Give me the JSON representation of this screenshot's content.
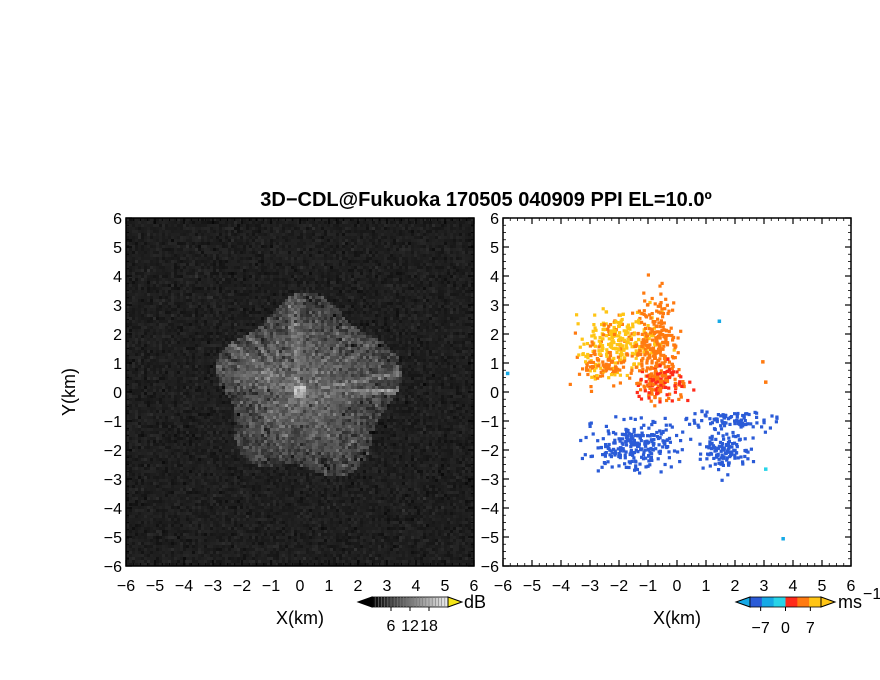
{
  "figure": {
    "title": "3D−CDL@Fukuoka 170505 040909 PPI EL=10.0º"
  },
  "chart_data": [
    {
      "type": "heatmap",
      "panel": "left",
      "description": "Doppler lidar SNR / reflectivity PPI (grayscale)",
      "xlabel": "X(km)",
      "ylabel": "Y(km)",
      "xlim": [
        -6,
        6
      ],
      "ylim": [
        -6,
        6
      ],
      "x_ticks": [
        "−6",
        "−5",
        "−4",
        "−3",
        "−2",
        "−1",
        "0",
        "1",
        "2",
        "3",
        "4",
        "5",
        "6"
      ],
      "y_ticks": [
        "6",
        "5",
        "4",
        "3",
        "2",
        "1",
        "0",
        "−1",
        "−2",
        "−3",
        "−4",
        "−5",
        "−6"
      ],
      "colorbar": {
        "unit": "dB",
        "ticks": [
          "6",
          "12",
          "18"
        ],
        "range": [
          0,
          24
        ],
        "colormap": "gray",
        "overflow_color": "#f5e61a"
      },
      "echo_region": {
        "center": [
          0,
          0
        ],
        "radius_km": [
          2.2,
          3.6
        ]
      },
      "background_color": "#1e1e1e"
    },
    {
      "type": "heatmap",
      "panel": "right",
      "description": "Doppler radial velocity PPI",
      "xlabel": "X(km)",
      "ylabel": "",
      "xlim": [
        -6,
        6
      ],
      "ylim": [
        -6,
        6
      ],
      "x_ticks": [
        "−6",
        "−5",
        "−4",
        "−3",
        "−2",
        "−1",
        "0",
        "1",
        "2",
        "3",
        "4",
        "5",
        "6"
      ],
      "y_ticks": [
        "6",
        "5",
        "4",
        "3",
        "2",
        "1",
        "0",
        "−1",
        "−2",
        "−3",
        "−4",
        "−5",
        "−6"
      ],
      "colorbar": {
        "unit": "ms",
        "unit_sup": "−1",
        "ticks": [
          "−7",
          "0",
          "7"
        ],
        "range": [
          -10,
          10
        ],
        "colors": [
          "#2a5bd7",
          "#16a9e6",
          "#27d4e8",
          "#ff2a1a",
          "#ff7a10",
          "#ffc515"
        ]
      },
      "clusters": [
        {
          "name": "receding-core",
          "center": [
            -2.0,
            1.9
          ],
          "size": [
            1.3,
            0.9
          ],
          "value_range": [
            5,
            8
          ]
        },
        {
          "name": "receding-west",
          "center": [
            -2.6,
            0.9
          ],
          "size": [
            0.8,
            0.6
          ],
          "value_range": [
            4,
            6
          ]
        },
        {
          "name": "receding-strand",
          "center": [
            -0.7,
            1.6
          ],
          "size": [
            0.7,
            1.7
          ],
          "value_range": [
            3,
            5
          ]
        },
        {
          "name": "receding-east",
          "center": [
            -0.6,
            0.4
          ],
          "size": [
            0.9,
            0.6
          ],
          "value_range": [
            2,
            4
          ]
        },
        {
          "name": "approach-sw",
          "center": [
            -1.5,
            -1.8
          ],
          "size": [
            1.4,
            0.8
          ],
          "value_range": [
            -8,
            -5
          ]
        },
        {
          "name": "approach-se",
          "center": [
            1.6,
            -2.0
          ],
          "size": [
            0.8,
            0.7
          ],
          "value_range": [
            -8,
            -5
          ]
        },
        {
          "name": "approach-band",
          "center": [
            1.8,
            -0.9
          ],
          "size": [
            1.4,
            0.3
          ],
          "value_range": [
            -9,
            -6
          ]
        }
      ],
      "isolated_points": [
        {
          "x": -5.9,
          "y": 0.7,
          "value": -3
        },
        {
          "x": 1.4,
          "y": 2.5,
          "value": -3
        },
        {
          "x": 3.6,
          "y": -5.0,
          "value": -3
        },
        {
          "x": 3.0,
          "y": -2.6,
          "value": -2
        },
        {
          "x": 3.0,
          "y": 0.4,
          "value": 3
        },
        {
          "x": 2.9,
          "y": 1.1,
          "value": 3
        }
      ]
    }
  ]
}
